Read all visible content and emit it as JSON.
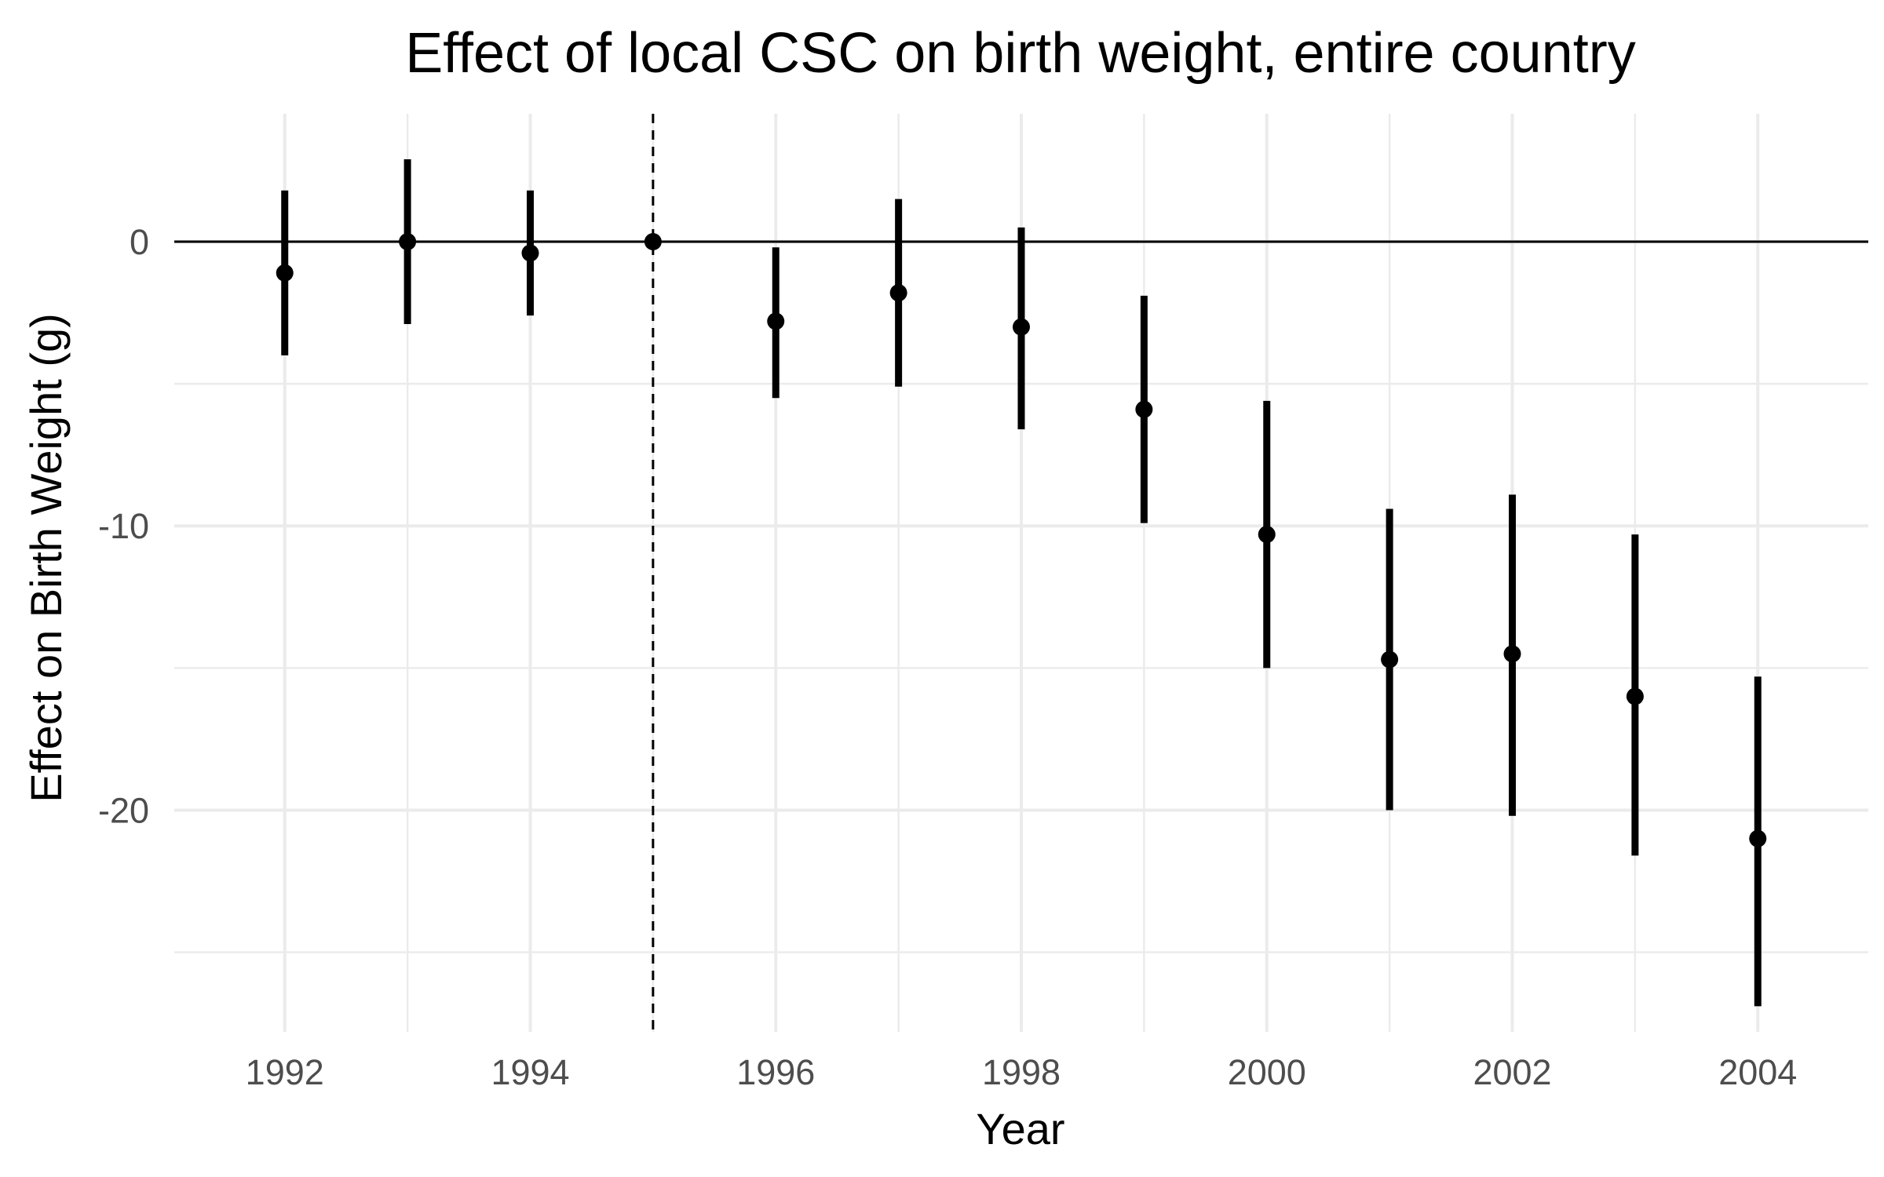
{
  "chart_data": {
    "type": "errorbar",
    "title": "Effect of local CSC on birth weight, entire country",
    "xlabel": "Year",
    "ylabel": "Effect on Birth Weight (g)",
    "xlim": [
      1991.1,
      2004.9
    ],
    "ylim": [
      -27.8,
      4.5
    ],
    "x_ticks": [
      1992,
      1994,
      1996,
      1998,
      2000,
      2002,
      2004
    ],
    "x_tick_labels": [
      "1992",
      "1994",
      "1996",
      "1998",
      "2000",
      "2002",
      "2004"
    ],
    "y_ticks": [
      0,
      -10,
      -20
    ],
    "y_tick_labels": [
      "0",
      "-10",
      "-20"
    ],
    "reference_line_y": 0,
    "reference_line_x": 1995,
    "grid": true,
    "series": [
      {
        "points": [
          {
            "x": 1992,
            "y": -1.1,
            "low": -4.0,
            "high": 1.8
          },
          {
            "x": 1993,
            "y": 0.0,
            "low": -2.9,
            "high": 2.9
          },
          {
            "x": 1994,
            "y": -0.4,
            "low": -2.6,
            "high": 1.8
          },
          {
            "x": 1995,
            "y": 0.0,
            "low": 0.0,
            "high": 0.0
          },
          {
            "x": 1996,
            "y": -2.8,
            "low": -5.5,
            "high": -0.2
          },
          {
            "x": 1997,
            "y": -1.8,
            "low": -5.1,
            "high": 1.5
          },
          {
            "x": 1998,
            "y": -3.0,
            "low": -6.6,
            "high": 0.5
          },
          {
            "x": 1999,
            "y": -5.9,
            "low": -9.9,
            "high": -1.9
          },
          {
            "x": 2000,
            "y": -10.3,
            "low": -15.0,
            "high": -5.6
          },
          {
            "x": 2001,
            "y": -14.7,
            "low": -20.0,
            "high": -9.4
          },
          {
            "x": 2002,
            "y": -14.5,
            "low": -20.2,
            "high": -8.9
          },
          {
            "x": 2003,
            "y": -16.0,
            "low": -21.6,
            "high": -10.3
          },
          {
            "x": 2004,
            "y": -21.0,
            "low": -26.9,
            "high": -15.3
          }
        ]
      }
    ]
  }
}
